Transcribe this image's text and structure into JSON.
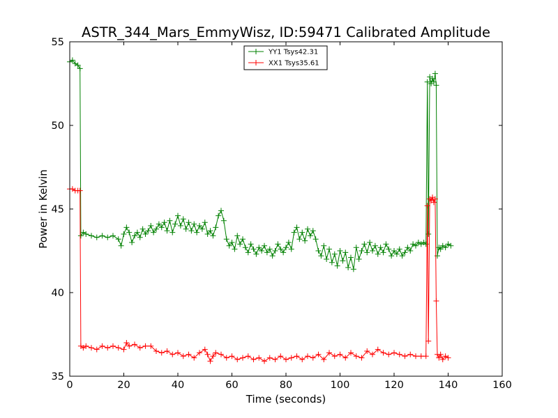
{
  "chart_data": {
    "type": "line",
    "title": "ASTR_344_Mars_EmmyWisz, ID:59471 Calibrated Amplitude",
    "xlabel": "Time (seconds)",
    "ylabel": "Power in Kelvin",
    "xlim": [
      0,
      160
    ],
    "ylim": [
      35,
      55
    ],
    "xticks": [
      0,
      20,
      40,
      60,
      80,
      100,
      120,
      140,
      160
    ],
    "yticks": [
      35,
      40,
      45,
      50,
      55
    ],
    "xtick_labels": [
      "0",
      "20",
      "40",
      "60",
      "80",
      "100",
      "120",
      "140",
      "160"
    ],
    "ytick_labels": [
      "35",
      "40",
      "45",
      "50",
      "55"
    ],
    "grid": false,
    "legend_position": "top-center",
    "marker": "plus",
    "series": [
      {
        "name": "YY1 Tsys42.31",
        "color": "#008000",
        "points": [
          [
            0,
            53.8
          ],
          [
            1,
            53.9
          ],
          [
            2,
            53.7
          ],
          [
            3,
            53.6
          ],
          [
            3.8,
            53.4
          ],
          [
            4.1,
            43.4
          ],
          [
            5,
            43.6
          ],
          [
            6,
            43.5
          ],
          [
            8,
            43.4
          ],
          [
            10,
            43.3
          ],
          [
            12,
            43.4
          ],
          [
            14,
            43.3
          ],
          [
            16,
            43.4
          ],
          [
            18,
            43.2
          ],
          [
            19,
            42.8
          ],
          [
            20,
            43.5
          ],
          [
            21,
            43.9
          ],
          [
            22,
            43.6
          ],
          [
            23,
            43.0
          ],
          [
            24,
            43.4
          ],
          [
            25,
            43.6
          ],
          [
            26,
            43.3
          ],
          [
            27,
            43.8
          ],
          [
            28,
            43.5
          ],
          [
            29,
            43.7
          ],
          [
            30,
            44.0
          ],
          [
            31,
            43.6
          ],
          [
            32,
            43.8
          ],
          [
            33,
            44.1
          ],
          [
            34,
            43.9
          ],
          [
            35,
            44.2
          ],
          [
            36,
            43.7
          ],
          [
            37,
            44.3
          ],
          [
            38,
            43.6
          ],
          [
            39,
            44.1
          ],
          [
            40,
            44.6
          ],
          [
            41,
            44.0
          ],
          [
            42,
            44.4
          ],
          [
            43,
            43.8
          ],
          [
            44,
            44.2
          ],
          [
            45,
            43.7
          ],
          [
            46,
            44.1
          ],
          [
            47,
            43.6
          ],
          [
            48,
            44.0
          ],
          [
            49,
            43.8
          ],
          [
            50,
            44.2
          ],
          [
            51,
            43.5
          ],
          [
            52,
            43.7
          ],
          [
            53,
            43.4
          ],
          [
            54,
            43.9
          ],
          [
            55,
            44.6
          ],
          [
            56,
            44.9
          ],
          [
            57,
            44.3
          ],
          [
            58,
            43.2
          ],
          [
            59,
            42.8
          ],
          [
            60,
            43.0
          ],
          [
            61,
            42.6
          ],
          [
            62,
            43.4
          ],
          [
            63,
            42.9
          ],
          [
            64,
            43.2
          ],
          [
            65,
            42.7
          ],
          [
            66,
            42.4
          ],
          [
            67,
            42.9
          ],
          [
            68,
            42.6
          ],
          [
            69,
            42.3
          ],
          [
            70,
            42.7
          ],
          [
            71,
            42.5
          ],
          [
            72,
            42.8
          ],
          [
            73,
            42.4
          ],
          [
            74,
            42.6
          ],
          [
            75,
            42.2
          ],
          [
            76,
            42.5
          ],
          [
            77,
            42.9
          ],
          [
            78,
            42.6
          ],
          [
            79,
            42.4
          ],
          [
            80,
            42.7
          ],
          [
            81,
            43.0
          ],
          [
            82,
            42.6
          ],
          [
            83,
            43.6
          ],
          [
            84,
            43.9
          ],
          [
            85,
            43.2
          ],
          [
            86,
            43.6
          ],
          [
            87,
            43.1
          ],
          [
            88,
            43.8
          ],
          [
            89,
            43.4
          ],
          [
            90,
            43.7
          ],
          [
            91,
            43.2
          ],
          [
            92,
            42.5
          ],
          [
            93,
            42.2
          ],
          [
            94,
            42.8
          ],
          [
            95,
            42.0
          ],
          [
            96,
            42.6
          ],
          [
            97,
            41.8
          ],
          [
            98,
            42.3
          ],
          [
            99,
            41.6
          ],
          [
            100,
            42.5
          ],
          [
            101,
            41.9
          ],
          [
            102,
            42.4
          ],
          [
            103,
            41.5
          ],
          [
            104,
            42.1
          ],
          [
            105,
            41.4
          ],
          [
            106,
            42.7
          ],
          [
            107,
            42.0
          ],
          [
            108,
            42.5
          ],
          [
            109,
            42.9
          ],
          [
            110,
            42.4
          ],
          [
            111,
            43.0
          ],
          [
            112,
            42.5
          ],
          [
            113,
            42.8
          ],
          [
            114,
            42.3
          ],
          [
            115,
            42.7
          ],
          [
            116,
            42.4
          ],
          [
            117,
            42.9
          ],
          [
            118,
            42.6
          ],
          [
            119,
            42.2
          ],
          [
            120,
            42.5
          ],
          [
            121,
            42.3
          ],
          [
            122,
            42.6
          ],
          [
            123,
            42.2
          ],
          [
            124,
            42.4
          ],
          [
            125,
            42.7
          ],
          [
            126,
            42.5
          ],
          [
            127,
            42.9
          ],
          [
            128,
            42.8
          ],
          [
            129,
            43.0
          ],
          [
            130,
            42.9
          ],
          [
            131,
            43.0
          ],
          [
            131.8,
            42.9
          ],
          [
            132.3,
            52.6
          ],
          [
            132.7,
            43.5
          ],
          [
            133.2,
            52.9
          ],
          [
            133.7,
            52.5
          ],
          [
            134.2,
            52.8
          ],
          [
            134.7,
            52.6
          ],
          [
            135.2,
            53.1
          ],
          [
            135.6,
            52.4
          ],
          [
            136.0,
            42.2
          ],
          [
            136.6,
            42.7
          ],
          [
            137.2,
            42.6
          ],
          [
            138,
            42.8
          ],
          [
            139,
            42.7
          ],
          [
            140,
            42.9
          ],
          [
            141,
            42.8
          ]
        ]
      },
      {
        "name": "XX1 Tsys35.61",
        "color": "#ff0000",
        "points": [
          [
            0,
            46.2
          ],
          [
            1,
            46.2
          ],
          [
            2,
            46.1
          ],
          [
            3,
            46.1
          ],
          [
            3.8,
            46.1
          ],
          [
            4.1,
            36.8
          ],
          [
            5,
            36.7
          ],
          [
            6,
            36.8
          ],
          [
            8,
            36.7
          ],
          [
            10,
            36.6
          ],
          [
            12,
            36.8
          ],
          [
            14,
            36.7
          ],
          [
            16,
            36.8
          ],
          [
            18,
            36.7
          ],
          [
            20,
            36.6
          ],
          [
            21,
            37.0
          ],
          [
            22,
            36.8
          ],
          [
            24,
            36.9
          ],
          [
            26,
            36.7
          ],
          [
            28,
            36.8
          ],
          [
            30,
            36.8
          ],
          [
            32,
            36.5
          ],
          [
            34,
            36.4
          ],
          [
            36,
            36.5
          ],
          [
            38,
            36.3
          ],
          [
            40,
            36.4
          ],
          [
            42,
            36.2
          ],
          [
            44,
            36.3
          ],
          [
            46,
            36.1
          ],
          [
            48,
            36.4
          ],
          [
            50,
            36.6
          ],
          [
            51,
            36.3
          ],
          [
            52,
            35.9
          ],
          [
            53,
            36.2
          ],
          [
            54,
            36.4
          ],
          [
            56,
            36.3
          ],
          [
            58,
            36.1
          ],
          [
            60,
            36.2
          ],
          [
            62,
            36.0
          ],
          [
            64,
            36.1
          ],
          [
            66,
            36.2
          ],
          [
            68,
            36.0
          ],
          [
            70,
            36.1
          ],
          [
            72,
            35.9
          ],
          [
            74,
            36.1
          ],
          [
            76,
            36.0
          ],
          [
            78,
            36.2
          ],
          [
            80,
            36.0
          ],
          [
            82,
            36.1
          ],
          [
            84,
            36.2
          ],
          [
            86,
            36.0
          ],
          [
            88,
            36.2
          ],
          [
            90,
            36.1
          ],
          [
            92,
            36.3
          ],
          [
            94,
            36.0
          ],
          [
            96,
            36.4
          ],
          [
            98,
            36.2
          ],
          [
            100,
            36.3
          ],
          [
            102,
            36.1
          ],
          [
            104,
            36.4
          ],
          [
            106,
            36.2
          ],
          [
            108,
            36.1
          ],
          [
            110,
            36.5
          ],
          [
            112,
            36.3
          ],
          [
            114,
            36.6
          ],
          [
            116,
            36.4
          ],
          [
            118,
            36.3
          ],
          [
            120,
            36.4
          ],
          [
            122,
            36.3
          ],
          [
            124,
            36.2
          ],
          [
            126,
            36.3
          ],
          [
            128,
            36.2
          ],
          [
            130,
            36.2
          ],
          [
            131.8,
            36.2
          ],
          [
            132.3,
            45.2
          ],
          [
            132.7,
            37.1
          ],
          [
            133.2,
            45.6
          ],
          [
            133.7,
            45.5
          ],
          [
            134.2,
            45.7
          ],
          [
            134.7,
            45.4
          ],
          [
            135.2,
            45.6
          ],
          [
            135.6,
            39.5
          ],
          [
            136.0,
            36.3
          ],
          [
            136.6,
            36.1
          ],
          [
            137.2,
            36.3
          ],
          [
            138,
            36.0
          ],
          [
            139,
            36.2
          ],
          [
            140,
            36.1
          ]
        ]
      }
    ]
  }
}
